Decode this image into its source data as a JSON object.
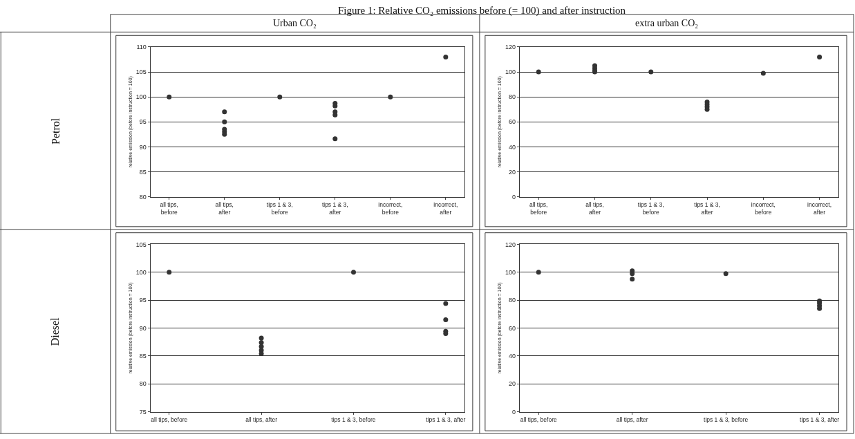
{
  "chart_data": [
    {
      "type": "scatter",
      "title": "Urban CO₂",
      "annotations": [
        "Figure 1: Relative CO₂ emissions before (= 100) and after instruction",
        "Petrol"
      ],
      "ylabel": "relative emission (before instruction = 100)",
      "categories": [
        "all tips, before",
        "all tips, after",
        "tips 1 & 3, before",
        "tips 1 & 3, after",
        "incorrect, before",
        "incorrect, after"
      ],
      "series": [
        {
          "color": "#333333",
          "x": [
            "all tips, before",
            "all tips, after",
            "all tips, after",
            "all tips, after",
            "all tips, after",
            "all tips, after",
            "tips 1 & 3, before",
            "tips 1 & 3, after",
            "tips 1 & 3, after",
            "tips 1 & 3, after",
            "tips 1 & 3, after",
            "tips 1 & 3, after",
            "incorrect, before",
            "incorrect, after"
          ],
          "values": [
            100,
            97,
            95,
            93.5,
            93,
            92.5,
            100,
            98.7,
            98.2,
            97,
            96.4,
            91.6,
            100,
            108
          ]
        }
      ],
      "ylim": [
        80,
        110
      ],
      "yticks": [
        80,
        85,
        90,
        95,
        100,
        105,
        110
      ],
      "grid": "y",
      "marker": "circle"
    },
    {
      "type": "scatter",
      "title": "extra urban CO₂",
      "ylabel": "relative emission (before instruction = 100)",
      "categories": [
        "all tips, before",
        "all tips, after",
        "tips 1 & 3, before",
        "tips 1 & 3, after",
        "incorrect, before",
        "incorrect, after"
      ],
      "series": [
        {
          "color": "#333333",
          "x": [
            "all tips, before",
            "all tips, after",
            "all tips, after",
            "all tips, after",
            "all tips, after",
            "tips 1 & 3, before",
            "tips 1 & 3, after",
            "tips 1 & 3, after",
            "tips 1 & 3, after",
            "tips 1 & 3, after",
            "incorrect, before",
            "incorrect, after"
          ],
          "values": [
            100,
            105,
            103,
            101,
            100,
            100,
            76,
            74,
            72,
            70,
            99,
            112
          ]
        }
      ],
      "ylim": [
        0,
        120
      ],
      "yticks": [
        0,
        20,
        40,
        60,
        80,
        100,
        120
      ],
      "grid": "y",
      "marker": "circle"
    },
    {
      "type": "scatter",
      "annotations": [
        "Diesel"
      ],
      "ylabel": "relative emission (before instruction = 100)",
      "categories": [
        "all tips, before",
        "all tips, after",
        "tips 1 & 3, before",
        "tips 1 & 3, after"
      ],
      "series": [
        {
          "color": "#333333",
          "x": [
            "all tips, before",
            "all tips, after",
            "all tips, after",
            "all tips, after",
            "all tips, after",
            "all tips, after",
            "tips 1 & 3, before",
            "tips 1 & 3, after",
            "tips 1 & 3, after",
            "tips 1 & 3, after",
            "tips 1 & 3, after"
          ],
          "values": [
            100,
            88.2,
            87.4,
            86.7,
            86,
            85.4,
            100,
            94.4,
            91.5,
            89.4,
            89
          ]
        }
      ],
      "ylim": [
        75,
        105
      ],
      "yticks": [
        75,
        80,
        85,
        90,
        95,
        100,
        105
      ],
      "grid": "y",
      "marker": "circle"
    },
    {
      "type": "scatter",
      "ylabel": "relative emission (before instruction = 100)",
      "categories": [
        "all tips, before",
        "all tips, after",
        "tips 1 & 3, before",
        "tips 1 & 3, after"
      ],
      "series": [
        {
          "color": "#333333",
          "x": [
            "all tips, before",
            "all tips, after",
            "all tips, after",
            "all tips, after",
            "tips 1 & 3, before",
            "tips 1 & 3, after",
            "tips 1 & 3, after",
            "tips 1 & 3, after",
            "tips 1 & 3, after"
          ],
          "values": [
            100,
            101,
            99,
            95,
            99,
            79.5,
            78,
            76,
            74
          ]
        }
      ],
      "ylim": [
        0,
        120
      ],
      "yticks": [
        0,
        20,
        40,
        60,
        80,
        100,
        120
      ],
      "grid": "y",
      "marker": "circle"
    }
  ]
}
